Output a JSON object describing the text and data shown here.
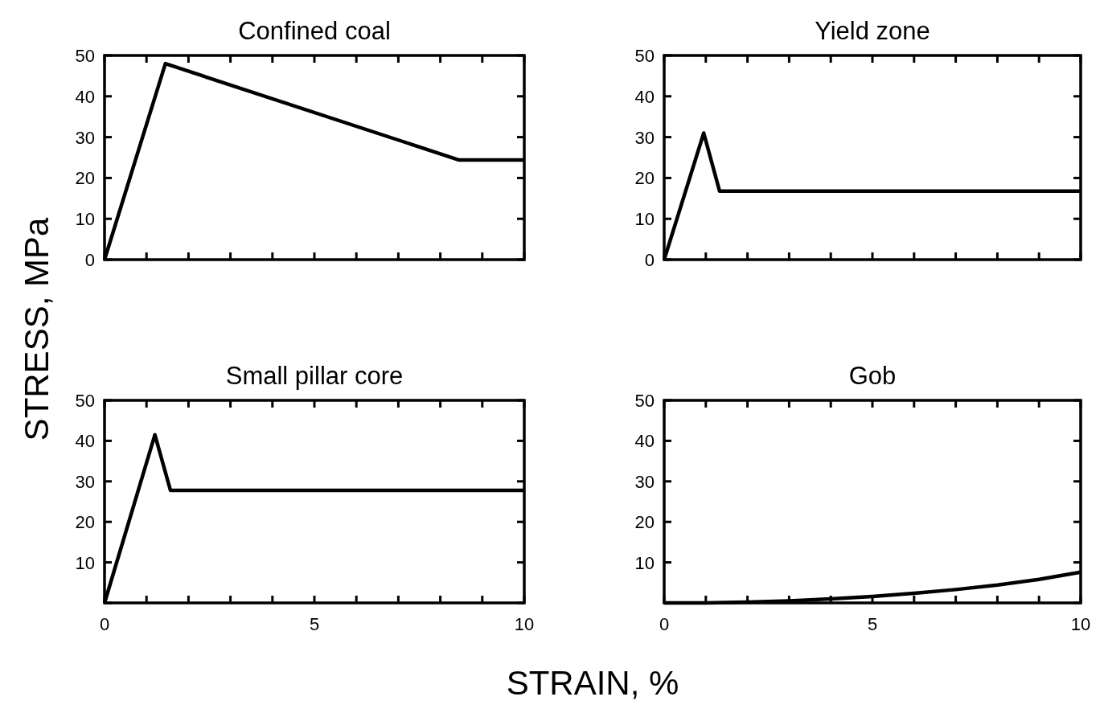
{
  "chart_data": [
    {
      "type": "line",
      "title": "Confined coal",
      "ylabel": "STRESS, MPa",
      "x": [
        0,
        1.45,
        8.45,
        10
      ],
      "values": [
        0,
        48,
        24.4,
        24.4
      ],
      "color": "#000000",
      "xlim": [
        0,
        10
      ],
      "ylim": [
        0,
        50
      ],
      "xticks": [
        {
          "value": 0,
          "label": null
        },
        {
          "value": 1,
          "label": null
        },
        {
          "value": 2,
          "label": null
        },
        {
          "value": 3,
          "label": null
        },
        {
          "value": 4,
          "label": null
        },
        {
          "value": 5,
          "label": null
        },
        {
          "value": 6,
          "label": null
        },
        {
          "value": 7,
          "label": null
        },
        {
          "value": 8,
          "label": null
        },
        {
          "value": 9,
          "label": null
        },
        {
          "value": 10,
          "label": null
        }
      ],
      "yticks": [
        0,
        10,
        20,
        30,
        40,
        50
      ],
      "tick_labels": "y"
    },
    {
      "type": "line",
      "title": "Yield zone",
      "x": [
        0,
        0.95,
        1.33,
        10
      ],
      "values": [
        0,
        31,
        16.8,
        16.8
      ],
      "color": "#000000",
      "xlim": [
        0,
        10
      ],
      "ylim": [
        0,
        50
      ],
      "xticks": [
        {
          "value": 0,
          "label": null
        },
        {
          "value": 1,
          "label": null
        },
        {
          "value": 2,
          "label": null
        },
        {
          "value": 3,
          "label": null
        },
        {
          "value": 4,
          "label": null
        },
        {
          "value": 5,
          "label": null
        },
        {
          "value": 6,
          "label": null
        },
        {
          "value": 7,
          "label": null
        },
        {
          "value": 8,
          "label": null
        },
        {
          "value": 9,
          "label": null
        },
        {
          "value": 10,
          "label": null
        }
      ],
      "yticks": [
        0,
        10,
        20,
        30,
        40,
        50
      ],
      "tick_labels": "y"
    },
    {
      "type": "line",
      "title": "Small pillar core",
      "xlabel": "STRAIN, %",
      "x": [
        0,
        1.2,
        1.57,
        10
      ],
      "values": [
        0,
        41.5,
        27.8,
        27.8
      ],
      "color": "#000000",
      "xlim": [
        0,
        10
      ],
      "ylim": [
        0,
        50
      ],
      "xticks": [
        0,
        {
          "value": 1,
          "label": null
        },
        {
          "value": 2,
          "label": null
        },
        {
          "value": 3,
          "label": null
        },
        {
          "value": 4,
          "label": null
        },
        5,
        {
          "value": 6,
          "label": null
        },
        {
          "value": 7,
          "label": null
        },
        {
          "value": 8,
          "label": null
        },
        {
          "value": 9,
          "label": null
        },
        10
      ],
      "yticks": [
        {
          "value": 0,
          "label": null
        },
        10,
        20,
        30,
        40,
        50
      ]
    },
    {
      "type": "line",
      "title": "Gob",
      "x": [
        0,
        1,
        2,
        3,
        4,
        5,
        6,
        7,
        8,
        9,
        10
      ],
      "values": [
        0,
        0,
        0.2,
        0.5,
        1,
        1.6,
        2.4,
        3.3,
        4.4,
        5.8,
        7.6
      ],
      "color": "#000000",
      "xlim": [
        0,
        10
      ],
      "ylim": [
        0,
        50
      ],
      "xticks": [
        0,
        {
          "value": 1,
          "label": null
        },
        {
          "value": 2,
          "label": null
        },
        {
          "value": 3,
          "label": null
        },
        {
          "value": 4,
          "label": null
        },
        5,
        {
          "value": 6,
          "label": null
        },
        {
          "value": 7,
          "label": null
        },
        {
          "value": 8,
          "label": null
        },
        {
          "value": 9,
          "label": null
        },
        10
      ],
      "yticks": [
        {
          "value": 0,
          "label": null
        },
        10,
        20,
        30,
        40,
        50
      ]
    }
  ]
}
